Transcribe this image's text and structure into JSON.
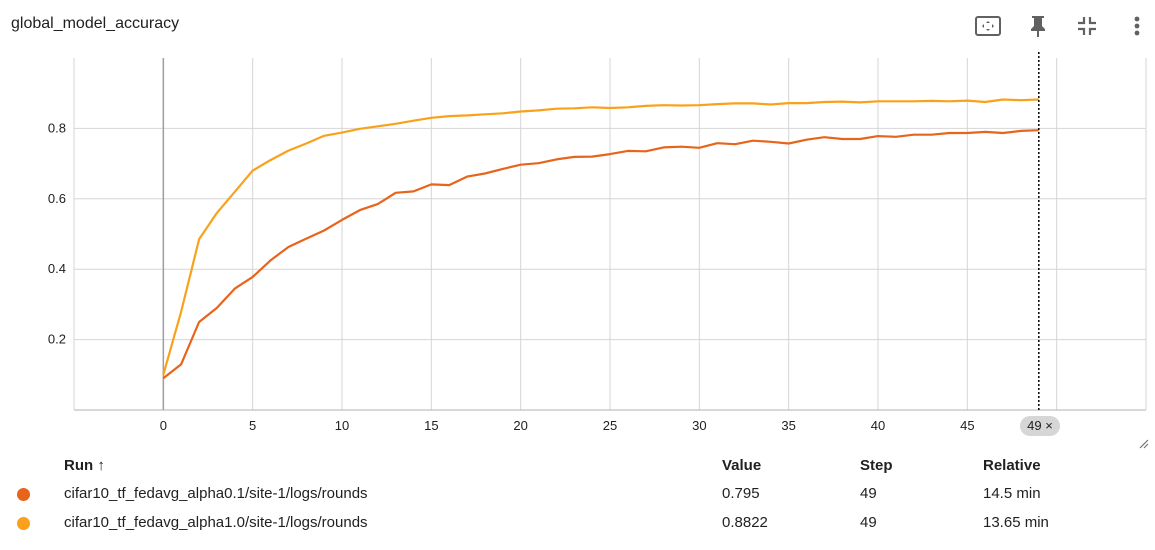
{
  "header": {
    "title": "global_model_accuracy",
    "tools": [
      {
        "name": "fit-domain-icon"
      },
      {
        "name": "pin-icon"
      },
      {
        "name": "collapse-icon"
      },
      {
        "name": "more-vert-icon"
      }
    ]
  },
  "chart_data": {
    "type": "line",
    "x_ticks": [
      "0",
      "5",
      "10",
      "15",
      "20",
      "25",
      "30",
      "35",
      "40",
      "45"
    ],
    "y_ticks": [
      "0.2",
      "0.4",
      "0.6",
      "0.8"
    ],
    "xlim": [
      -5,
      55
    ],
    "ylim": [
      0,
      1
    ],
    "grid": true,
    "cursor_step": 49,
    "series": [
      {
        "name": "cifar10_tf_fedavg_alpha0.1/site-1/logs/rounds",
        "color": "#e8641b",
        "x": [
          0,
          1,
          2,
          3,
          4,
          5,
          6,
          7,
          8,
          9,
          10,
          11,
          12,
          13,
          14,
          15,
          16,
          17,
          18,
          19,
          20,
          21,
          22,
          23,
          24,
          25,
          26,
          27,
          28,
          29,
          30,
          31,
          32,
          33,
          34,
          35,
          36,
          37,
          38,
          39,
          40,
          41,
          42,
          43,
          44,
          45,
          46,
          47,
          48,
          49
        ],
        "y": [
          0.09,
          0.13,
          0.25,
          0.29,
          0.345,
          0.378,
          0.425,
          0.463,
          0.487,
          0.51,
          0.54,
          0.568,
          0.585,
          0.617,
          0.621,
          0.641,
          0.639,
          0.663,
          0.672,
          0.685,
          0.697,
          0.701,
          0.712,
          0.719,
          0.72,
          0.727,
          0.736,
          0.735,
          0.746,
          0.748,
          0.745,
          0.758,
          0.755,
          0.765,
          0.762,
          0.757,
          0.768,
          0.775,
          0.77,
          0.77,
          0.778,
          0.776,
          0.782,
          0.782,
          0.787,
          0.787,
          0.79,
          0.787,
          0.793,
          0.795
        ]
      },
      {
        "name": "cifar10_tf_fedavg_alpha1.0/site-1/logs/rounds",
        "color": "#f9a11b",
        "x": [
          0,
          1,
          2,
          3,
          4,
          5,
          6,
          7,
          8,
          9,
          10,
          11,
          12,
          13,
          14,
          15,
          16,
          17,
          18,
          19,
          20,
          21,
          22,
          23,
          24,
          25,
          26,
          27,
          28,
          29,
          30,
          31,
          32,
          33,
          34,
          35,
          36,
          37,
          38,
          39,
          40,
          41,
          42,
          43,
          44,
          45,
          46,
          47,
          48,
          49
        ],
        "y": [
          0.1,
          0.28,
          0.485,
          0.56,
          0.62,
          0.68,
          0.71,
          0.737,
          0.757,
          0.779,
          0.788,
          0.799,
          0.806,
          0.813,
          0.822,
          0.83,
          0.835,
          0.837,
          0.84,
          0.843,
          0.848,
          0.851,
          0.856,
          0.857,
          0.86,
          0.858,
          0.86,
          0.864,
          0.866,
          0.865,
          0.866,
          0.869,
          0.871,
          0.871,
          0.868,
          0.872,
          0.872,
          0.875,
          0.876,
          0.874,
          0.877,
          0.877,
          0.877,
          0.878,
          0.877,
          0.879,
          0.875,
          0.882,
          0.88,
          0.8822
        ]
      }
    ]
  },
  "legend_table": {
    "headers": {
      "run": "Run ↑",
      "value": "Value",
      "step": "Step",
      "relative": "Relative"
    },
    "rows": [
      {
        "run": "cifar10_tf_fedavg_alpha0.1/site-1/logs/rounds",
        "value": "0.795",
        "step": "49",
        "relative": "14.5 min",
        "color": "#e8641b"
      },
      {
        "run": "cifar10_tf_fedavg_alpha1.0/site-1/logs/rounds",
        "value": "0.8822",
        "step": "49",
        "relative": "13.65 min",
        "color": "#f9a11b"
      }
    ]
  },
  "cursor_badge": "49 ×"
}
